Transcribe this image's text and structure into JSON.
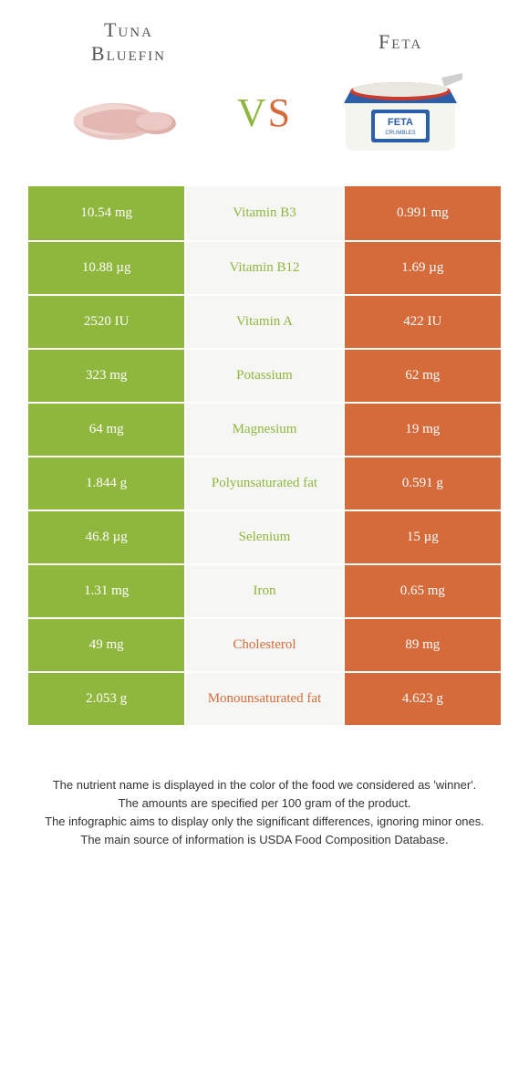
{
  "food1": {
    "title_line1": "Tuna",
    "title_line2": "Bluefin"
  },
  "food2": {
    "title_line1": "Feta",
    "title_line2": ""
  },
  "vs": {
    "v": "V",
    "s": "S"
  },
  "colors": {
    "left_bg": "#8fb73e",
    "right_bg": "#d56a3a",
    "mid_bg": "#f6f6f4",
    "left_text": "#ffffff",
    "right_text": "#ffffff",
    "mid_winner_left": "#8fb73e",
    "mid_winner_right": "#d56a3a"
  },
  "rows": [
    {
      "left": "10.54 mg",
      "mid": "Vitamin B3",
      "right": "0.991 mg",
      "winner": "left"
    },
    {
      "left": "10.88 µg",
      "mid": "Vitamin B12",
      "right": "1.69 µg",
      "winner": "left"
    },
    {
      "left": "2520 IU",
      "mid": "Vitamin A",
      "right": "422 IU",
      "winner": "left"
    },
    {
      "left": "323 mg",
      "mid": "Potassium",
      "right": "62 mg",
      "winner": "left"
    },
    {
      "left": "64 mg",
      "mid": "Magnesium",
      "right": "19 mg",
      "winner": "left"
    },
    {
      "left": "1.844 g",
      "mid": "Polyunsaturated fat",
      "right": "0.591 g",
      "winner": "left"
    },
    {
      "left": "46.8 µg",
      "mid": "Selenium",
      "right": "15 µg",
      "winner": "left"
    },
    {
      "left": "1.31 mg",
      "mid": "Iron",
      "right": "0.65 mg",
      "winner": "left"
    },
    {
      "left": "49 mg",
      "mid": "Cholesterol",
      "right": "89 mg",
      "winner": "right"
    },
    {
      "left": "2.053 g",
      "mid": "Monounsaturated fat",
      "right": "4.623 g",
      "winner": "right"
    }
  ],
  "footnotes": [
    "The nutrient name is displayed in the color of the food we considered as 'winner'.",
    "The amounts are specified per 100 gram of the product.",
    "The infographic aims to display only the significant differences, ignoring minor ones.",
    "The main source of information is USDA Food Composition Database."
  ]
}
